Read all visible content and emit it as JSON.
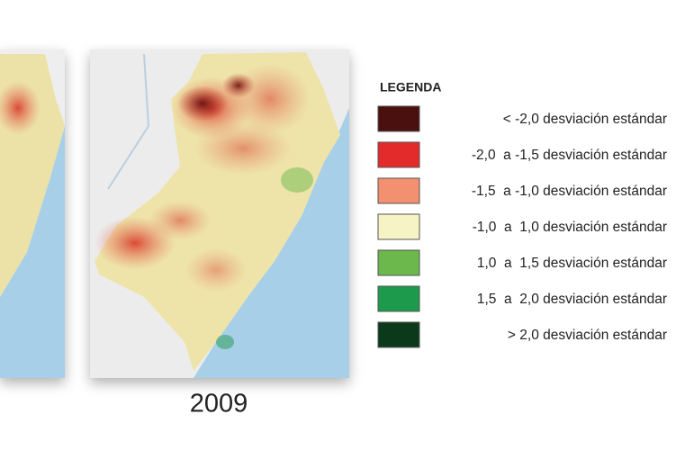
{
  "map": {
    "year": "2009"
  },
  "legend": {
    "title": "LEGENDA",
    "items": [
      {
        "label": "< -2,0 desviación estándar",
        "color": "#4a1010"
      },
      {
        "label": "-2,0  a -1,5 desviación estándar",
        "color": "#e42b2b"
      },
      {
        "label": "-1,5  a -1,0 desviación estándar",
        "color": "#f29070"
      },
      {
        "label": "-1,0  a  1,0 desviación estándar",
        "color": "#f6f3c4"
      },
      {
        "label": "1,0  a  1,5 desviación estándar",
        "color": "#6cb84c"
      },
      {
        "label": "1,5  a  2,0 desviación estándar",
        "color": "#1e9a4c"
      },
      {
        "label": "> 2,0 desviación estándar",
        "color": "#0b3a1a"
      }
    ]
  }
}
